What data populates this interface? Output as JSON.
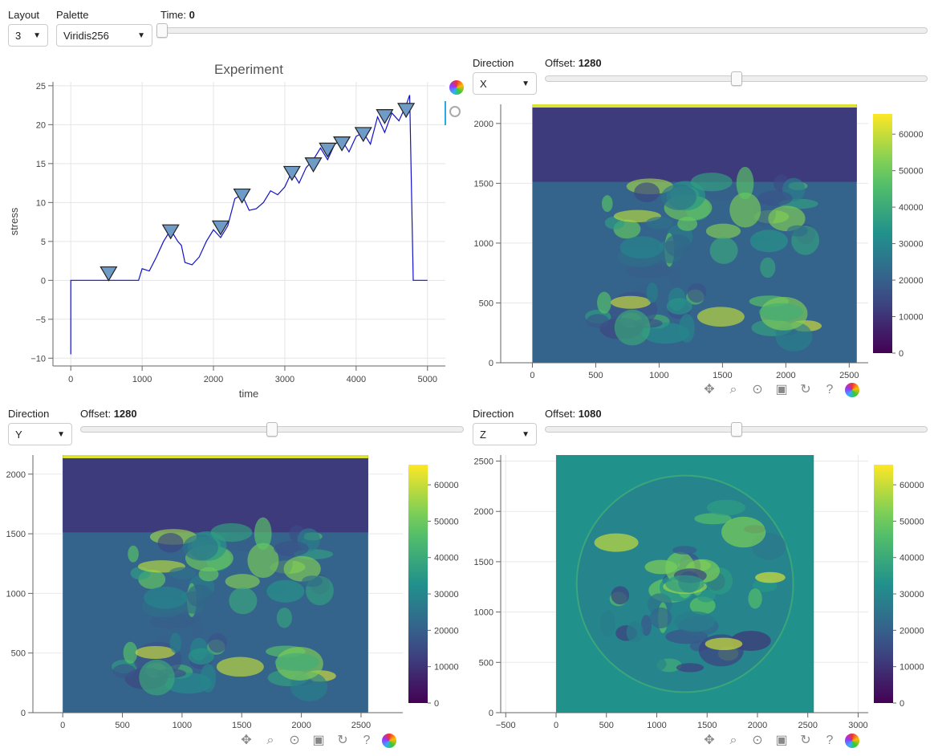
{
  "controls": {
    "layout_label": "Layout",
    "layout_value": "3",
    "palette_label": "Palette",
    "palette_value": "Viridis256",
    "time_label": "Time:",
    "time_value": "0",
    "time_fraction": 0.0
  },
  "plot_experiment": {
    "title": "Experiment",
    "xlabel": "time",
    "ylabel": "stress"
  },
  "panel_x": {
    "direction_label": "Direction",
    "direction_value": "X",
    "offset_label": "Offset:",
    "offset_value": "1280",
    "offset_fraction": 0.5
  },
  "panel_y": {
    "direction_label": "Direction",
    "direction_value": "Y",
    "offset_label": "Offset:",
    "offset_value": "1280",
    "offset_fraction": 0.5
  },
  "panel_z": {
    "direction_label": "Direction",
    "direction_value": "Z",
    "offset_label": "Offset:",
    "offset_value": "1080",
    "offset_fraction": 0.5
  },
  "colorbar_ticks": [
    "0",
    "10000",
    "20000",
    "30000",
    "40000",
    "50000",
    "60000"
  ],
  "chart_data": [
    {
      "type": "line",
      "title": "Experiment",
      "xlabel": "time",
      "ylabel": "stress",
      "xlim": [
        -250,
        5250
      ],
      "ylim": [
        -11,
        25.5
      ],
      "x_ticks": [
        0,
        1000,
        2000,
        3000,
        4000,
        5000
      ],
      "y_ticks": [
        -10,
        -5,
        0,
        5,
        10,
        15,
        20,
        25
      ],
      "series": [
        {
          "x": [
            0,
            0,
            10,
            300,
            600,
            950,
            1000,
            1100,
            1200,
            1300,
            1400,
            1500,
            1550,
            1600,
            1700,
            1800,
            1900,
            2000,
            2100,
            2200,
            2300,
            2400,
            2500,
            2600,
            2700,
            2800,
            2900,
            3000,
            3100,
            3200,
            3300,
            3400,
            3500,
            3600,
            3700,
            3800,
            3900,
            4000,
            4100,
            4200,
            4300,
            4400,
            4500,
            4600,
            4700,
            4750,
            4800,
            4900,
            5000
          ],
          "y": [
            -9.5,
            0,
            0,
            0,
            0,
            0,
            1.5,
            1.2,
            3,
            5,
            6.5,
            5,
            4.5,
            2.3,
            2,
            3,
            5,
            6.5,
            5.5,
            7,
            10.5,
            11,
            9,
            9.2,
            10,
            11.5,
            11,
            12,
            14,
            12.5,
            14.5,
            15.5,
            17,
            15.5,
            17.5,
            18,
            16.5,
            18.5,
            19,
            17.5,
            21,
            19,
            21.5,
            20.5,
            22.5,
            23.8,
            0,
            0,
            0
          ]
        }
      ],
      "markers": [
        {
          "x": 530,
          "y": 0.8
        },
        {
          "x": 1400,
          "y": 6.2
        },
        {
          "x": 2100,
          "y": 6.7
        },
        {
          "x": 2400,
          "y": 10.8
        },
        {
          "x": 3100,
          "y": 13.7
        },
        {
          "x": 3400,
          "y": 14.8
        },
        {
          "x": 3600,
          "y": 16.7
        },
        {
          "x": 3800,
          "y": 17.5
        },
        {
          "x": 4100,
          "y": 18.7
        },
        {
          "x": 4400,
          "y": 21
        },
        {
          "x": 4700,
          "y": 21.8
        }
      ],
      "marker_color": "#6f9bc7",
      "line_color": "#1111cc"
    },
    {
      "type": "heatmap",
      "name": "slice_x",
      "x_ticks": [
        0,
        500,
        1000,
        1500,
        2000,
        2500
      ],
      "y_ticks": [
        0,
        500,
        1000,
        1500,
        2000
      ],
      "xlim": [
        -250,
        2650
      ],
      "ylim": [
        0,
        2160
      ],
      "colorbar_range": [
        0,
        65535
      ]
    },
    {
      "type": "heatmap",
      "name": "slice_y",
      "x_ticks": [
        0,
        500,
        1000,
        1500,
        2000,
        2500
      ],
      "y_ticks": [
        0,
        500,
        1000,
        1500,
        2000
      ],
      "xlim": [
        -250,
        2850
      ],
      "ylim": [
        0,
        2160
      ],
      "colorbar_range": [
        0,
        65535
      ]
    },
    {
      "type": "heatmap",
      "name": "slice_z",
      "x_ticks": [
        -500,
        0,
        500,
        1000,
        1500,
        2000,
        2500,
        3000
      ],
      "y_ticks": [
        0,
        500,
        1000,
        1500,
        2000,
        2500
      ],
      "xlim": [
        -550,
        3100
      ],
      "ylim": [
        0,
        2560
      ],
      "colorbar_range": [
        0,
        65535
      ]
    }
  ]
}
